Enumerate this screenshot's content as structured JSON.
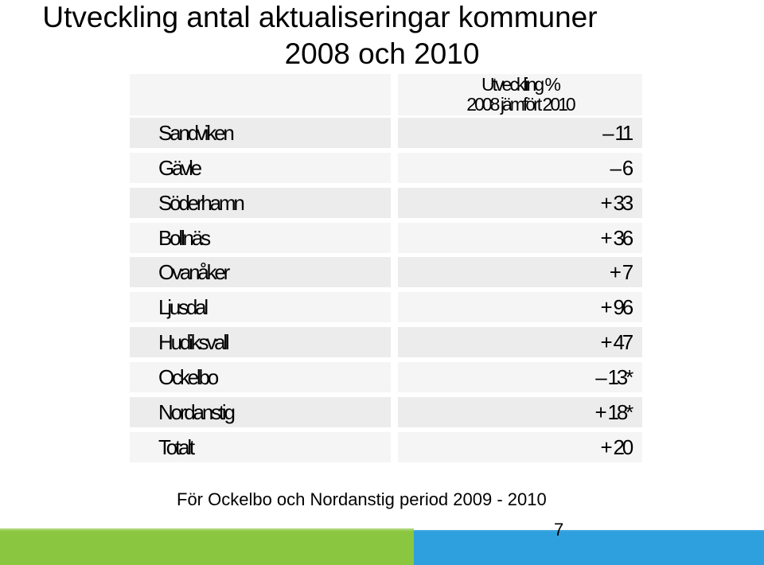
{
  "title": {
    "line1": "Utveckling antal aktualiseringar kommuner",
    "line2": "2008 och 2010"
  },
  "table": {
    "header_line1": "Utveckling %",
    "header_line2": "2008 jämfört 2010",
    "rows": [
      {
        "name": "Sandviken",
        "value": "– 11"
      },
      {
        "name": "Gävle",
        "value": "– 6"
      },
      {
        "name": "Söderhamn",
        "value": "+ 33"
      },
      {
        "name": "Bollnäs",
        "value": "+ 36"
      },
      {
        "name": "Ovanåker",
        "value": "+ 7"
      },
      {
        "name": "Ljusdal",
        "value": "+ 96"
      },
      {
        "name": "Hudiksvall",
        "value": "+ 47"
      },
      {
        "name": "Ockelbo",
        "value": "– 13*"
      },
      {
        "name": "Nordanstig",
        "value": "+ 18*"
      },
      {
        "name": "Totalt",
        "value": "+ 20"
      }
    ]
  },
  "footnote": "För Ockelbo och Nordanstig period 2009 - 2010",
  "page_number": "7",
  "colors": {
    "row_dark": "#ececec",
    "row_light": "#f5f5f5",
    "bottom_green": "#8ac63f",
    "bottom_blue": "#2fa0de"
  }
}
